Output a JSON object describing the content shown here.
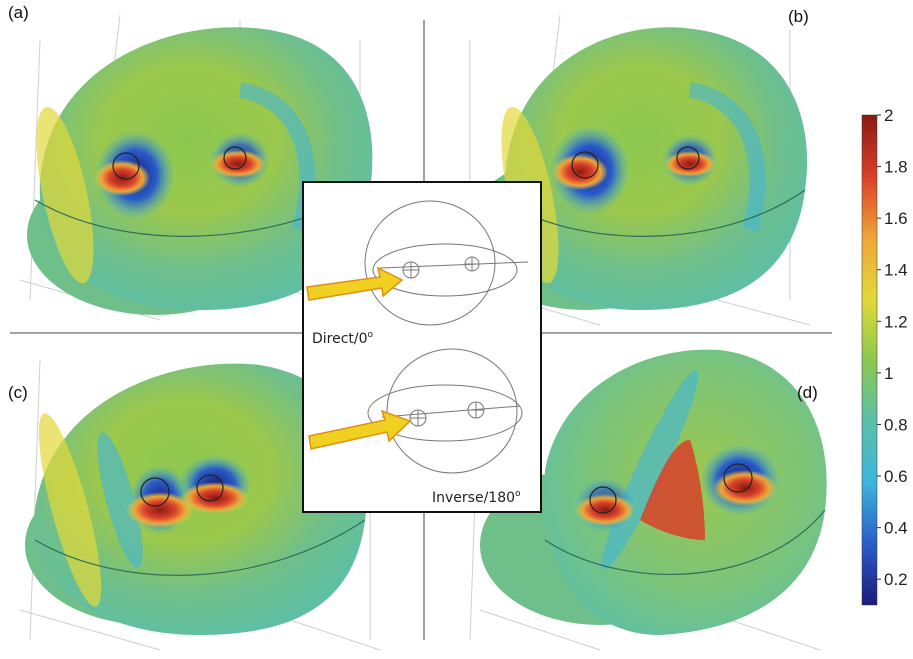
{
  "panels": [
    {
      "label": "(a)"
    },
    {
      "label": "(b)"
    },
    {
      "label": "(c)"
    },
    {
      "label": "(d)"
    }
  ],
  "inset": {
    "direct_label": "Direct/0",
    "direct_sup": "o",
    "inverse_label": "Inverse/180",
    "inverse_sup": "o"
  },
  "colorbar": {
    "min": 0.1,
    "max": 2,
    "ticks": [
      "2",
      "1.8",
      "1.6",
      "1.4",
      "1.2",
      "1",
      "0.8",
      "0.6",
      "0.4",
      "0.2"
    ],
    "colors": [
      "#1c1c7a",
      "#2a5cc8",
      "#3fb5dc",
      "#5bbfa8",
      "#8cc850",
      "#e2d83a",
      "#f0a43a",
      "#d8402a",
      "#8a1a12"
    ]
  }
}
